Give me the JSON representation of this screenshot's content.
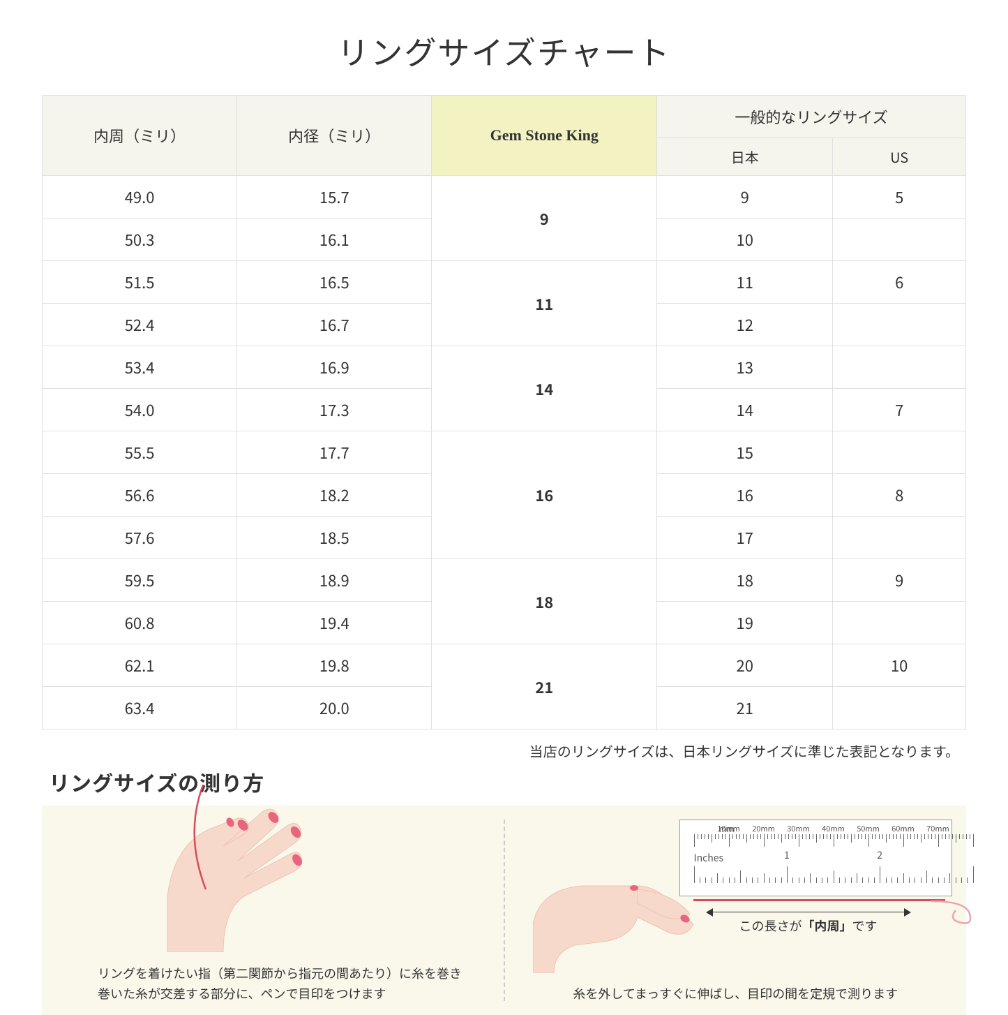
{
  "title": "リングサイズチャート",
  "headers": {
    "col1": "内周（ミリ）",
    "col2": "内径（ミリ）",
    "col3": "Gem Stone King",
    "col4_group": "一般的なリングサイズ",
    "col4a": "日本",
    "col4b": "US"
  },
  "groups": [
    {
      "gsk": "9",
      "rows": [
        {
          "c": "49.0",
          "d": "15.7",
          "jp": "9",
          "us": "5"
        },
        {
          "c": "50.3",
          "d": "16.1",
          "jp": "10",
          "us": ""
        }
      ]
    },
    {
      "gsk": "11",
      "rows": [
        {
          "c": "51.5",
          "d": "16.5",
          "jp": "11",
          "us": "6"
        },
        {
          "c": "52.4",
          "d": "16.7",
          "jp": "12",
          "us": ""
        }
      ]
    },
    {
      "gsk": "14",
      "rows": [
        {
          "c": "53.4",
          "d": "16.9",
          "jp": "13",
          "us": ""
        },
        {
          "c": "54.0",
          "d": "17.3",
          "jp": "14",
          "us": "7"
        }
      ]
    },
    {
      "gsk": "16",
      "rows": [
        {
          "c": "55.5",
          "d": "17.7",
          "jp": "15",
          "us": ""
        },
        {
          "c": "56.6",
          "d": "18.2",
          "jp": "16",
          "us": "8"
        },
        {
          "c": "57.6",
          "d": "18.5",
          "jp": "17",
          "us": ""
        }
      ]
    },
    {
      "gsk": "18",
      "rows": [
        {
          "c": "59.5",
          "d": "18.9",
          "jp": "18",
          "us": "9"
        },
        {
          "c": "60.8",
          "d": "19.4",
          "jp": "19",
          "us": ""
        }
      ]
    },
    {
      "gsk": "21",
      "rows": [
        {
          "c": "62.1",
          "d": "19.8",
          "jp": "20",
          "us": "10"
        },
        {
          "c": "63.4",
          "d": "20.0",
          "jp": "21",
          "us": ""
        }
      ]
    }
  ],
  "note": "当店のリングサイズは、日本リングサイズに準じた表記となります。",
  "howto_title": "リングサイズの測り方",
  "panel1_text_l1": "リングを着けたい指（第二関節から指元の間あたり）に糸を巻き",
  "panel1_text_l2": "巻いた糸が交差する部分に、ペンで目印をつけます",
  "panel2_text": "糸を外してまっすぐに伸ばし、目印の間を定規で測ります",
  "ruler": {
    "mm_label": "mm",
    "inches_label": "Inches",
    "mm_marks": [
      "10mm",
      "20mm",
      "30mm",
      "40mm",
      "50mm",
      "60mm",
      "70mm"
    ],
    "in_marks": [
      "1",
      "2"
    ]
  },
  "measure_label_pre": "この長さが",
  "measure_label_bold": "「内周」",
  "measure_label_post": "です",
  "colors": {
    "header_bg": "#f5f4ed",
    "highlight_bg": "#f2f2c2",
    "border": "#e0e0e0",
    "howto_bg": "#faf8ea",
    "skin": "#f7d9cc",
    "skin_shadow": "#eec4b3",
    "nail": "#e8657f",
    "thread": "#d94a5a"
  }
}
